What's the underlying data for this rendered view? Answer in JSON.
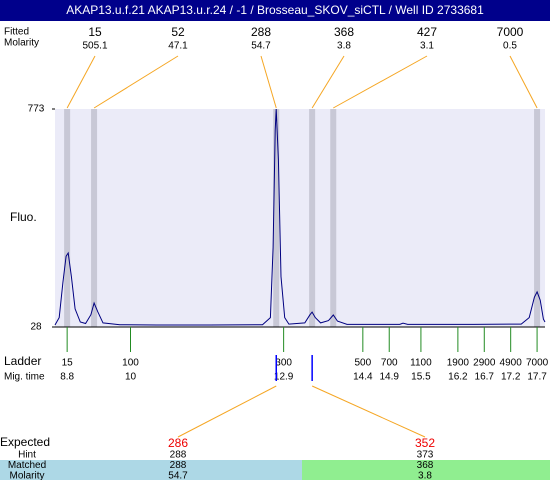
{
  "chart_data": {
    "type": "line",
    "title": "AKAP13.u.f.21  AKAP13.u.r.24 / -1 / Brosseau_SKOV_siCTL / Well ID 2733681",
    "peak_header": [
      "Fitted",
      "Molarity"
    ],
    "peaks": {
      "sizes": [
        15,
        52,
        288,
        368,
        427,
        7000
      ],
      "molarity": [
        505.1,
        47.1,
        54.7,
        3.8,
        3.1,
        0.5
      ],
      "x": [
        8.8,
        9.31,
        12.76,
        13.44,
        13.84,
        17.7
      ]
    },
    "ylabel": "Fluo.",
    "ylim": [
      28,
      773
    ],
    "yticks": [
      28,
      773
    ],
    "xlim": [
      8.57,
      17.85
    ],
    "x": [
      8.57,
      8.65,
      8.72,
      8.78,
      8.82,
      8.88,
      8.95,
      9.05,
      9.15,
      9.25,
      9.31,
      9.38,
      9.48,
      9.8,
      10.5,
      11.5,
      12.5,
      12.65,
      12.7,
      12.74,
      12.76,
      12.8,
      12.85,
      12.92,
      13.0,
      13.3,
      13.4,
      13.44,
      13.5,
      13.6,
      13.75,
      13.84,
      13.92,
      14.1,
      15.1,
      15.16,
      15.25,
      16.5,
      17.4,
      17.55,
      17.65,
      17.7,
      17.76,
      17.82,
      17.85
    ],
    "series": [
      {
        "name": "Fluo.",
        "color": "#000080",
        "values": [
          35,
          60,
          180,
          270,
          281,
          200,
          90,
          45,
          40,
          70,
          110,
          80,
          42,
          36,
          35,
          35,
          36,
          60,
          300,
          700,
          773,
          600,
          200,
          60,
          38,
          42,
          70,
          79,
          60,
          42,
          50,
          69,
          48,
          37,
          37,
          41,
          37,
          37,
          38,
          60,
          130,
          148,
          120,
          55,
          45
        ]
      }
    ],
    "ladder": {
      "label": "Ladder",
      "time_label": "Mig. time",
      "sizes": [
        15,
        100,
        300,
        500,
        700,
        1100,
        1900,
        2900,
        4900,
        7000
      ],
      "times": [
        8.8,
        10,
        12.9,
        14.4,
        14.9,
        15.5,
        16.2,
        16.7,
        17.2,
        17.7
      ]
    },
    "markers": [
      12.76,
      13.44
    ],
    "expected": {
      "label": "Expected",
      "values": [
        286,
        352
      ],
      "rows": [
        {
          "label": "Hint",
          "values": [
            288,
            373
          ]
        },
        {
          "label": "Matched",
          "values": [
            288,
            368
          ]
        },
        {
          "label": "Molarity",
          "values": [
            54.7,
            3.8
          ]
        }
      ]
    }
  }
}
